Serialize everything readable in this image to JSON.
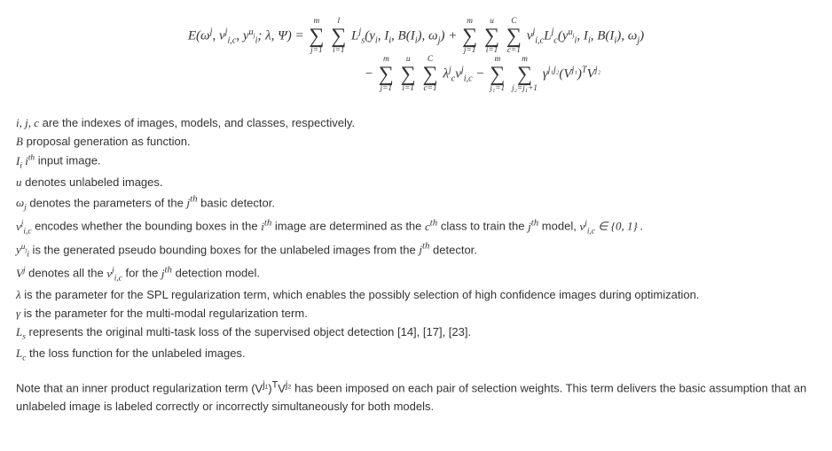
{
  "equation": {
    "line1": {
      "lhs_pre": "E(ω",
      "lhs_post": "; λ, Ψ) = ",
      "sum1_top": "m",
      "sum1_bot": "j=1",
      "sum2_top": "l",
      "sum2_bot": "i=1",
      "term1a": "L",
      "term1b": "(y",
      "term1c": ", I",
      "term1d": ", B(I",
      "term1e": "), ω",
      "term1f": ") + ",
      "sum3_top": "m",
      "sum3_bot": "j=1",
      "sum4_top": "u",
      "sum4_bot": "i=1",
      "sum5_top": "C",
      "sum5_bot": "c=1",
      "term2a": "v",
      "term2b": "L",
      "term2c": "(y",
      "term2d": ", I",
      "term2e": ", B(I",
      "term2f": "), ω",
      "term2g": ")"
    },
    "line2": {
      "minus1": " − ",
      "sum1_top": "m",
      "sum1_bot": "j=1",
      "sum2_top": "u",
      "sum2_bot": "i=1",
      "sum3_top": "C",
      "sum3_bot": "c=1",
      "term1a": "λ",
      "term1b": "v",
      "minus2": " − ",
      "sum4_top": "m",
      "sum4_bot": "j₁=1",
      "sum5_top": "m",
      "sum5_bot": "j₂=j₁+1",
      "term2a": "γ",
      "term2b": "(V",
      "term2c": ")",
      "term2d": "V"
    }
  },
  "defs": {
    "d1_sym": "i, j, c",
    "d1_txt": " are the indexes of images, models, and classes, respectively.",
    "d2_sym": "B",
    "d2_txt": " proposal generation as function.",
    "d3_sym_a": "I",
    "d3_sub": "i",
    "d3_sym_b": " i",
    "d3_sup": "th",
    "d3_txt": " input image.",
    "d4_sym": "u",
    "d4_txt": " denotes unlabeled images.",
    "d5_sym": "ω",
    "d5_sub": "j",
    "d5_txt_a": " denotes the parameters of the ",
    "d5_jth": "j",
    "d5_th": "th",
    "d5_txt_b": "  basic detector.",
    "d6_sym": "v",
    "d6_txt_a": " encodes whether the bounding boxes in the ",
    "d6_i": "i",
    "d6_th1": "th",
    "d6_txt_b": " image are determined as the ",
    "d6_c": "c",
    "d6_th2": "th",
    "d6_txt_c": " class to train the ",
    "d6_j": "j",
    "d6_th3": "th",
    "d6_txt_d": " model, ",
    "d6_sym2": "v",
    "d6_set": " ∈ {0, 1} .",
    "d7_sym": "y",
    "d7_txt_a": " is the generated pseudo bounding boxes for the unlabeled images from the ",
    "d7_j": "j",
    "d7_th": "th",
    "d7_txt_b": "  detector.",
    "d8_sym": "V",
    "d8_sup": "j",
    "d8_txt_a": " denotes all the ",
    "d8_sym2": "v",
    "d8_txt_b": " for the ",
    "d8_j": "j",
    "d8_th": "th",
    "d8_txt_c": "  detection model.",
    "d9_sym": "λ",
    "d9_txt": " is the parameter for the SPL regularization term, which enables the possibly selection of high confidence images during optimization.",
    "d10_sym": "γ",
    "d10_txt": " is the parameter for the multi-modal regularization term.",
    "d11_sym": "L",
    "d11_sub": "s",
    "d11_txt": " represents the original multi-task loss of the supervised object detection [14], [17], [23].",
    "d12_sym": "L",
    "d12_sub": "c",
    "d12_txt": " the loss function for the unlabeled images."
  },
  "note": {
    "a": "Note that an inner product regularization term ",
    "expr_a": "(V",
    "expr_b": ")",
    "expr_c": "V",
    "b": " has been imposed on each pair of selection weights. This term delivers the basic assumption that an unlabeled image is labeled correctly or incorrectly simultaneously for both models."
  }
}
